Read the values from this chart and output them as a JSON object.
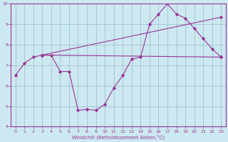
{
  "title": "",
  "xlabel": "Windchill (Refroidissement éolien,°C)",
  "background_color": "#cce8f0",
  "grid_color": "#99bbcc",
  "line_color": "#993399",
  "xlim": [
    -0.5,
    23.5
  ],
  "ylim": [
    4,
    10
  ],
  "yticks": [
    4,
    5,
    6,
    7,
    8,
    9,
    10
  ],
  "xticks": [
    0,
    1,
    2,
    3,
    4,
    5,
    6,
    7,
    8,
    9,
    10,
    11,
    12,
    13,
    14,
    15,
    16,
    17,
    18,
    19,
    20,
    21,
    22,
    23
  ],
  "line1_x": [
    0,
    1,
    2,
    3,
    4,
    5,
    6,
    7,
    8,
    9,
    10,
    11,
    12,
    13,
    14,
    15,
    16,
    17,
    18,
    19,
    20,
    21,
    22,
    23
  ],
  "line1_y": [
    6.5,
    7.1,
    7.4,
    7.5,
    7.5,
    6.7,
    6.7,
    4.8,
    4.85,
    4.8,
    5.1,
    5.9,
    6.5,
    7.3,
    7.4,
    9.0,
    9.5,
    10.0,
    9.5,
    9.3,
    8.8,
    8.3,
    7.8,
    7.4
  ],
  "line2_x": [
    3,
    23
  ],
  "line2_y": [
    7.5,
    7.4
  ],
  "line3_x": [
    3,
    23
  ],
  "line3_y": [
    7.5,
    9.35
  ],
  "marker_size": 1.8,
  "line_width": 0.8,
  "tick_fontsize": 4.5,
  "xlabel_fontsize": 5.0
}
